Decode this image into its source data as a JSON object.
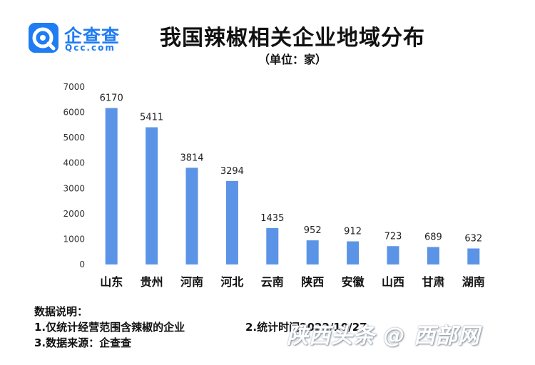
{
  "logo": {
    "name": "企查查",
    "domain": "Qcc.com"
  },
  "title": "我国辣椒相关企业地域分布",
  "subtitle": "（单位：家）",
  "chart_data": {
    "type": "bar",
    "title": "我国辣椒相关企业地域分布",
    "unit": "（单位：家）",
    "categories": [
      "山东",
      "贵州",
      "河南",
      "河北",
      "云南",
      "陕西",
      "安徽",
      "山西",
      "甘肃",
      "湖南"
    ],
    "values": [
      6170,
      5411,
      3814,
      3294,
      1435,
      952,
      912,
      723,
      689,
      632
    ],
    "ylim": [
      0,
      7000
    ],
    "yticks": [
      0,
      1000,
      2000,
      3000,
      4000,
      5000,
      6000,
      7000
    ],
    "grid": false,
    "bar_color": "#5b93e6"
  },
  "notes": {
    "heading": "数据说明：",
    "line1": "1.仅统计经营范围含辣椒的企业",
    "line2": "2.统计时间2022/10/27",
    "line3": "3.数据来源：企查查"
  },
  "watermark": "陕西头条 @ 西部网"
}
